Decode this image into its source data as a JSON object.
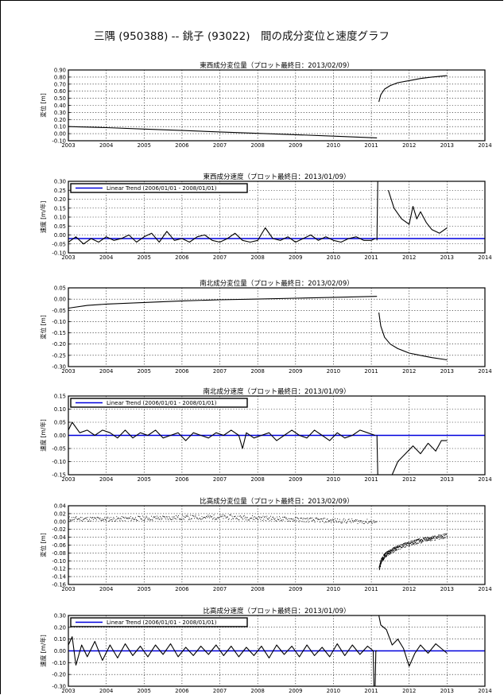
{
  "page": {
    "title": "三隅 (950388) -- 銚子 (93022)　間の成分変位と速度グラフ"
  },
  "colors": {
    "data": "#000000",
    "trend": "#0000dd",
    "grid": "#000000"
  },
  "chart_data": [
    {
      "id": "ew-disp",
      "type": "line",
      "title": "東西成分変位量（プロット最終日：2013/02/09）",
      "ylabel": "変位 [m]",
      "ylim": [
        -0.1,
        0.9
      ],
      "yticks": [
        -0.1,
        0.0,
        0.1,
        0.2,
        0.3,
        0.4,
        0.5,
        0.6,
        0.7,
        0.8,
        0.9
      ],
      "ytick_labels": [
        "-0.10",
        "0.00",
        "0.10",
        "0.20",
        "0.30",
        "0.40",
        "0.50",
        "0.60",
        "0.70",
        "0.80",
        "0.90"
      ],
      "xlim": [
        2003,
        2014
      ],
      "xticks": [
        "2003",
        "2004",
        "2005",
        "2006",
        "2007",
        "2008",
        "2009",
        "2010",
        "2011",
        "2012",
        "2013",
        "2014"
      ],
      "grid": true,
      "series": [
        {
          "x": [
            2003.0,
            2004.0,
            2005.0,
            2006.0,
            2007.0,
            2008.0,
            2009.0,
            2010.0,
            2011.15
          ],
          "y": [
            0.1,
            0.085,
            0.065,
            0.045,
            0.025,
            0.005,
            -0.015,
            -0.035,
            -0.06
          ]
        },
        {
          "x": [
            2011.2,
            2011.25,
            2011.35,
            2011.5,
            2011.7,
            2012.0,
            2012.3,
            2012.6,
            2013.0
          ],
          "y": [
            0.45,
            0.55,
            0.63,
            0.68,
            0.72,
            0.75,
            0.78,
            0.8,
            0.82
          ]
        }
      ]
    },
    {
      "id": "ew-vel",
      "type": "line",
      "title": "東西成分速度（プロット最終日：2013/01/09）",
      "ylabel": "速度 [m/年]",
      "ylim": [
        -0.1,
        0.3
      ],
      "yticks": [
        -0.1,
        -0.05,
        0.0,
        0.05,
        0.1,
        0.15,
        0.2,
        0.25,
        0.3
      ],
      "ytick_labels": [
        "-0.10",
        "-0.05",
        "0.00",
        "0.05",
        "0.10",
        "0.15",
        "0.20",
        "0.25",
        "0.30"
      ],
      "xlim": [
        2003,
        2014
      ],
      "xticks": [
        "2003",
        "2004",
        "2005",
        "2006",
        "2007",
        "2008",
        "2009",
        "2010",
        "2011",
        "2012",
        "2013",
        "2014"
      ],
      "grid": true,
      "legend": {
        "label": "Linear Trend (2006/01/01 - 2008/01/01)",
        "position": "top-left"
      },
      "trend": -0.02,
      "series": [
        {
          "x": [
            2003.0,
            2003.2,
            2003.4,
            2003.6,
            2003.8,
            2004.0,
            2004.2,
            2004.4,
            2004.6,
            2004.8,
            2005.0,
            2005.2,
            2005.4,
            2005.6,
            2005.8,
            2006.0,
            2006.2,
            2006.4,
            2006.6,
            2006.8,
            2007.0,
            2007.2,
            2007.4,
            2007.6,
            2007.8,
            2008.0,
            2008.2,
            2008.4,
            2008.6,
            2008.8,
            2009.0,
            2009.2,
            2009.4,
            2009.6,
            2009.8,
            2010.0,
            2010.2,
            2010.4,
            2010.6,
            2010.8,
            2011.0,
            2011.1
          ],
          "y": [
            -0.04,
            -0.01,
            -0.05,
            -0.02,
            -0.04,
            -0.01,
            -0.03,
            -0.02,
            0.0,
            -0.04,
            -0.01,
            0.01,
            -0.04,
            0.02,
            -0.03,
            -0.02,
            -0.04,
            -0.01,
            0.0,
            -0.03,
            -0.04,
            -0.02,
            0.01,
            -0.03,
            -0.04,
            -0.03,
            0.04,
            -0.02,
            -0.03,
            -0.01,
            -0.04,
            -0.02,
            0.0,
            -0.03,
            -0.01,
            -0.03,
            -0.04,
            -0.02,
            -0.01,
            -0.03,
            -0.03,
            -0.02
          ]
        },
        {
          "x": [
            2011.15,
            2011.17,
            2011.2
          ],
          "y": [
            -0.03,
            0.3,
            0.3
          ]
        },
        {
          "x": [
            2011.45,
            2011.6,
            2011.8,
            2012.0,
            2012.1,
            2012.2,
            2012.3,
            2012.45,
            2012.6,
            2012.8,
            2013.0
          ],
          "y": [
            0.25,
            0.15,
            0.09,
            0.06,
            0.16,
            0.09,
            0.13,
            0.07,
            0.03,
            0.01,
            0.04
          ]
        }
      ]
    },
    {
      "id": "ns-disp",
      "type": "line",
      "title": "南北成分変位量（プロット最終日：2013/02/09）",
      "ylabel": "変位 [m]",
      "ylim": [
        -0.3,
        0.05
      ],
      "yticks": [
        -0.3,
        -0.25,
        -0.2,
        -0.15,
        -0.1,
        -0.05,
        0.0,
        0.05
      ],
      "ytick_labels": [
        "-0.30",
        "-0.25",
        "-0.20",
        "-0.15",
        "-0.10",
        "-0.05",
        "0.00",
        "0.05"
      ],
      "xlim": [
        2003,
        2014
      ],
      "xticks": [
        "2003",
        "2004",
        "2005",
        "2006",
        "2007",
        "2008",
        "2009",
        "2010",
        "2011",
        "2012",
        "2013",
        "2014"
      ],
      "grid": true,
      "series": [
        {
          "x": [
            2003.0,
            2003.5,
            2004.0,
            2005.0,
            2006.0,
            2007.0,
            2008.0,
            2009.0,
            2010.0,
            2011.15
          ],
          "y": [
            -0.04,
            -0.028,
            -0.022,
            -0.015,
            -0.008,
            -0.003,
            0.0,
            0.004,
            0.008,
            0.012
          ]
        },
        {
          "x": [
            2011.2,
            2011.25,
            2011.35,
            2011.5,
            2011.7,
            2012.0,
            2012.3,
            2012.6,
            2013.0
          ],
          "y": [
            -0.06,
            -0.12,
            -0.17,
            -0.2,
            -0.22,
            -0.24,
            -0.25,
            -0.26,
            -0.27
          ]
        }
      ]
    },
    {
      "id": "ns-vel",
      "type": "line",
      "title": "南北成分速度（プロット最終日：2013/01/09）",
      "ylabel": "速度 [m/年]",
      "ylim": [
        -0.15,
        0.15
      ],
      "yticks": [
        -0.15,
        -0.1,
        -0.05,
        0.0,
        0.05,
        0.1,
        0.15
      ],
      "ytick_labels": [
        "-0.15",
        "-0.10",
        "-0.05",
        "0.00",
        "0.05",
        "0.10",
        "0.15"
      ],
      "xlim": [
        2003,
        2014
      ],
      "xticks": [
        "2003",
        "2004",
        "2005",
        "2006",
        "2007",
        "2008",
        "2009",
        "2010",
        "2011",
        "2012",
        "2013",
        "2014"
      ],
      "grid": true,
      "legend": {
        "label": "Linear Trend (2006/01/01 - 2008/01/01)",
        "position": "top-left"
      },
      "trend": 0.0,
      "series": [
        {
          "x": [
            2003.0,
            2003.1,
            2003.3,
            2003.5,
            2003.7,
            2003.9,
            2004.1,
            2004.3,
            2004.5,
            2004.7,
            2004.9,
            2005.1,
            2005.3,
            2005.5,
            2005.7,
            2005.9,
            2006.1,
            2006.3,
            2006.5,
            2006.7,
            2006.9,
            2007.1,
            2007.3,
            2007.5,
            2007.6,
            2007.7,
            2007.9,
            2008.1,
            2008.3,
            2008.5,
            2008.7,
            2008.9,
            2009.1,
            2009.3,
            2009.5,
            2009.7,
            2009.9,
            2010.1,
            2010.3,
            2010.5,
            2010.7,
            2010.9,
            2011.1
          ],
          "y": [
            0.02,
            0.05,
            0.01,
            0.02,
            0.0,
            0.02,
            0.01,
            -0.01,
            0.02,
            -0.01,
            0.01,
            0.0,
            0.02,
            -0.01,
            0.0,
            0.01,
            -0.02,
            0.01,
            0.0,
            -0.01,
            0.01,
            0.0,
            0.02,
            0.0,
            -0.05,
            0.01,
            -0.01,
            0.0,
            0.01,
            -0.02,
            0.0,
            0.02,
            0.0,
            -0.01,
            0.02,
            0.0,
            -0.02,
            0.01,
            -0.01,
            0.0,
            0.02,
            0.01,
            0.0
          ]
        },
        {
          "x": [
            2011.15,
            2011.17,
            2011.2
          ],
          "y": [
            0.0,
            -0.15,
            -0.15
          ]
        },
        {
          "x": [
            2011.55,
            2011.7,
            2011.9,
            2012.1,
            2012.3,
            2012.5,
            2012.7,
            2012.85,
            2013.0
          ],
          "y": [
            -0.15,
            -0.1,
            -0.07,
            -0.04,
            -0.07,
            -0.03,
            -0.06,
            -0.02,
            -0.02
          ]
        }
      ]
    },
    {
      "id": "ud-disp",
      "type": "scatter",
      "title": "比高成分変位量（プロット最終日：2013/02/09）",
      "ylabel": "変位 [m]",
      "ylim": [
        -0.16,
        0.04
      ],
      "yticks": [
        -0.16,
        -0.14,
        -0.12,
        -0.1,
        -0.08,
        -0.06,
        -0.04,
        -0.02,
        0.0,
        0.02,
        0.04
      ],
      "ytick_labels": [
        "-0.16",
        "-0.14",
        "-0.12",
        "-0.10",
        "-0.08",
        "-0.06",
        "-0.04",
        "-0.02",
        "0.00",
        "0.02",
        "0.04"
      ],
      "xlim": [
        2003,
        2014
      ],
      "xticks": [
        "2003",
        "2004",
        "2005",
        "2006",
        "2007",
        "2008",
        "2009",
        "2010",
        "2011",
        "2012",
        "2013",
        "2014"
      ],
      "grid": true,
      "series": [
        {
          "x": [
            2003.0,
            2004.0,
            2005.0,
            2006.0,
            2007.0,
            2008.0,
            2009.0,
            2010.0,
            2011.15
          ],
          "y": [
            0.008,
            0.007,
            0.009,
            0.011,
            0.012,
            0.01,
            0.006,
            0.003,
            0.0
          ]
        },
        {
          "x": [
            2011.2,
            2011.25,
            2011.35,
            2011.5,
            2011.7,
            2012.0,
            2012.3,
            2012.6,
            2013.0
          ],
          "y": [
            -0.12,
            -0.1,
            -0.085,
            -0.075,
            -0.065,
            -0.055,
            -0.048,
            -0.042,
            -0.035
          ]
        }
      ]
    },
    {
      "id": "ud-vel",
      "type": "line",
      "title": "比高成分速度（プロット最終日：2013/01/09）",
      "ylabel": "速度 [m/年]",
      "ylim": [
        -0.3,
        0.3
      ],
      "yticks": [
        -0.3,
        -0.2,
        -0.1,
        0.0,
        0.1,
        0.2,
        0.3
      ],
      "ytick_labels": [
        "-0.30",
        "-0.20",
        "-0.10",
        "0.00",
        "0.10",
        "0.20",
        "0.30"
      ],
      "xlim": [
        2003,
        2014
      ],
      "xticks": [
        "2003",
        "2004",
        "2005",
        "2006",
        "2007",
        "2008",
        "2009",
        "2010",
        "2011",
        "2012",
        "2013",
        "2014"
      ],
      "grid": true,
      "legend": {
        "label": "Linear Trend (2006/01/01 - 2008/01/01)",
        "position": "top-left"
      },
      "trend": 0.0,
      "series": [
        {
          "x": [
            2003.0,
            2003.1,
            2003.2,
            2003.35,
            2003.5,
            2003.7,
            2003.9,
            2004.1,
            2004.3,
            2004.5,
            2004.7,
            2004.9,
            2005.1,
            2005.3,
            2005.5,
            2005.7,
            2005.9,
            2006.1,
            2006.3,
            2006.5,
            2006.7,
            2006.9,
            2007.1,
            2007.3,
            2007.5,
            2007.7,
            2007.9,
            2008.1,
            2008.3,
            2008.5,
            2008.7,
            2008.9,
            2009.1,
            2009.3,
            2009.5,
            2009.7,
            2009.9,
            2010.1,
            2010.3,
            2010.5,
            2010.7,
            2010.9,
            2011.05
          ],
          "y": [
            0.05,
            0.12,
            -0.12,
            0.05,
            -0.05,
            0.08,
            -0.08,
            0.05,
            -0.06,
            0.06,
            -0.04,
            0.04,
            -0.05,
            0.05,
            -0.03,
            0.06,
            -0.05,
            0.03,
            -0.04,
            0.04,
            -0.03,
            0.05,
            -0.04,
            0.04,
            -0.05,
            0.03,
            -0.04,
            0.04,
            -0.06,
            0.05,
            -0.03,
            0.04,
            -0.05,
            0.05,
            -0.04,
            0.03,
            -0.05,
            0.06,
            -0.04,
            0.05,
            -0.03,
            0.04,
            0.0
          ]
        },
        {
          "x": [
            2011.05,
            2011.07,
            2011.1,
            2011.12,
            2011.15
          ],
          "y": [
            0.0,
            -0.3,
            -0.3,
            0.0,
            0.0
          ]
        },
        {
          "x": [
            2011.15,
            2011.2,
            2011.25,
            2011.4,
            2011.55,
            2011.7,
            2011.85,
            2012.0,
            2012.15,
            2012.3,
            2012.5,
            2012.7,
            2012.85,
            2013.0
          ],
          "y": [
            0.3,
            0.3,
            0.22,
            0.18,
            0.05,
            0.1,
            0.02,
            -0.13,
            -0.02,
            0.05,
            -0.02,
            0.06,
            0.02,
            -0.02
          ]
        }
      ]
    }
  ]
}
